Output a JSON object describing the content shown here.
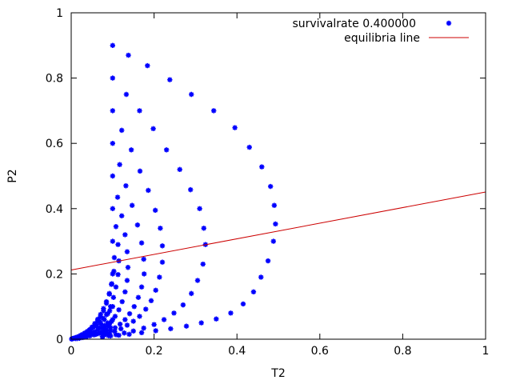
{
  "chart_data": {
    "type": "scatter",
    "title": "",
    "xlabel": "T2",
    "ylabel": "P2",
    "xlim": [
      0,
      1
    ],
    "ylim": [
      0,
      1
    ],
    "xticks": [
      "0",
      "0.2",
      "0.4",
      "0.6",
      "0.8",
      "1"
    ],
    "yticks": [
      "0",
      "0.2",
      "0.4",
      "0.6",
      "0.8",
      "1"
    ],
    "grid": false,
    "legend_position": "top-right",
    "series": [
      {
        "name": "survivalrate 0.400000",
        "kind": "points",
        "color": "#0000ff",
        "marker": "star",
        "points": [
          [
            0.1,
            0.9
          ],
          [
            0.138,
            0.87
          ],
          [
            0.184,
            0.838
          ],
          [
            0.238,
            0.795
          ],
          [
            0.29,
            0.75
          ],
          [
            0.344,
            0.7
          ],
          [
            0.395,
            0.648
          ],
          [
            0.43,
            0.588
          ],
          [
            0.46,
            0.528
          ],
          [
            0.481,
            0.468
          ],
          [
            0.49,
            0.41
          ],
          [
            0.493,
            0.353
          ],
          [
            0.488,
            0.3
          ],
          [
            0.475,
            0.24
          ],
          [
            0.458,
            0.19
          ],
          [
            0.44,
            0.145
          ],
          [
            0.415,
            0.108
          ],
          [
            0.385,
            0.08
          ],
          [
            0.35,
            0.062
          ],
          [
            0.314,
            0.05
          ],
          [
            0.278,
            0.04
          ],
          [
            0.24,
            0.032
          ],
          [
            0.204,
            0.026
          ],
          [
            0.17,
            0.02
          ],
          [
            0.14,
            0.015
          ],
          [
            0.115,
            0.012
          ],
          [
            0.095,
            0.01
          ],
          [
            0.076,
            0.008
          ],
          [
            0.1,
            0.8
          ],
          [
            0.133,
            0.75
          ],
          [
            0.165,
            0.7
          ],
          [
            0.198,
            0.645
          ],
          [
            0.23,
            0.58
          ],
          [
            0.262,
            0.52
          ],
          [
            0.288,
            0.458
          ],
          [
            0.31,
            0.4
          ],
          [
            0.32,
            0.34
          ],
          [
            0.324,
            0.29
          ],
          [
            0.318,
            0.23
          ],
          [
            0.305,
            0.18
          ],
          [
            0.29,
            0.14
          ],
          [
            0.27,
            0.105
          ],
          [
            0.248,
            0.08
          ],
          [
            0.224,
            0.06
          ],
          [
            0.2,
            0.045
          ],
          [
            0.175,
            0.034
          ],
          [
            0.15,
            0.025
          ],
          [
            0.128,
            0.019
          ],
          [
            0.108,
            0.014
          ],
          [
            0.09,
            0.011
          ],
          [
            0.075,
            0.008
          ],
          [
            0.1,
            0.7
          ],
          [
            0.122,
            0.64
          ],
          [
            0.145,
            0.58
          ],
          [
            0.166,
            0.515
          ],
          [
            0.186,
            0.456
          ],
          [
            0.203,
            0.395
          ],
          [
            0.215,
            0.34
          ],
          [
            0.22,
            0.286
          ],
          [
            0.22,
            0.236
          ],
          [
            0.213,
            0.19
          ],
          [
            0.204,
            0.15
          ],
          [
            0.193,
            0.118
          ],
          [
            0.18,
            0.092
          ],
          [
            0.165,
            0.07
          ],
          [
            0.15,
            0.055
          ],
          [
            0.135,
            0.043
          ],
          [
            0.12,
            0.032
          ],
          [
            0.105,
            0.024
          ],
          [
            0.092,
            0.018
          ],
          [
            0.08,
            0.013
          ],
          [
            0.1,
            0.6
          ],
          [
            0.117,
            0.535
          ],
          [
            0.132,
            0.47
          ],
          [
            0.147,
            0.41
          ],
          [
            0.16,
            0.35
          ],
          [
            0.17,
            0.295
          ],
          [
            0.175,
            0.245
          ],
          [
            0.176,
            0.2
          ],
          [
            0.17,
            0.16
          ],
          [
            0.162,
            0.128
          ],
          [
            0.152,
            0.1
          ],
          [
            0.141,
            0.078
          ],
          [
            0.13,
            0.06
          ],
          [
            0.118,
            0.046
          ],
          [
            0.106,
            0.035
          ],
          [
            0.095,
            0.026
          ],
          [
            0.084,
            0.019
          ],
          [
            0.1,
            0.5
          ],
          [
            0.112,
            0.435
          ],
          [
            0.122,
            0.378
          ],
          [
            0.13,
            0.32
          ],
          [
            0.135,
            0.268
          ],
          [
            0.137,
            0.22
          ],
          [
            0.135,
            0.18
          ],
          [
            0.13,
            0.145
          ],
          [
            0.123,
            0.115
          ],
          [
            0.115,
            0.09
          ],
          [
            0.106,
            0.07
          ],
          [
            0.097,
            0.054
          ],
          [
            0.088,
            0.041
          ],
          [
            0.079,
            0.031
          ],
          [
            0.1,
            0.4
          ],
          [
            0.108,
            0.345
          ],
          [
            0.113,
            0.29
          ],
          [
            0.115,
            0.24
          ],
          [
            0.113,
            0.198
          ],
          [
            0.108,
            0.16
          ],
          [
            0.102,
            0.128
          ],
          [
            0.095,
            0.1
          ],
          [
            0.088,
            0.078
          ],
          [
            0.08,
            0.06
          ],
          [
            0.072,
            0.046
          ],
          [
            0.065,
            0.035
          ],
          [
            0.1,
            0.3
          ],
          [
            0.104,
            0.25
          ],
          [
            0.103,
            0.208
          ],
          [
            0.098,
            0.17
          ],
          [
            0.092,
            0.138
          ],
          [
            0.085,
            0.11
          ],
          [
            0.078,
            0.087
          ],
          [
            0.07,
            0.068
          ],
          [
            0.063,
            0.053
          ],
          [
            0.056,
            0.04
          ],
          [
            0.1,
            0.2
          ],
          [
            0.097,
            0.168
          ],
          [
            0.092,
            0.14
          ],
          [
            0.085,
            0.115
          ],
          [
            0.078,
            0.094
          ],
          [
            0.071,
            0.076
          ],
          [
            0.064,
            0.061
          ],
          [
            0.057,
            0.048
          ],
          [
            0.05,
            0.037
          ],
          [
            0.044,
            0.028
          ],
          [
            0.1,
            0.1
          ],
          [
            0.093,
            0.087
          ],
          [
            0.085,
            0.075
          ],
          [
            0.077,
            0.064
          ],
          [
            0.069,
            0.054
          ],
          [
            0.061,
            0.045
          ],
          [
            0.053,
            0.037
          ],
          [
            0.046,
            0.03
          ],
          [
            0.039,
            0.024
          ],
          [
            0.033,
            0.019
          ],
          [
            0.028,
            0.015
          ],
          [
            0.023,
            0.012
          ],
          [
            0.019,
            0.009
          ],
          [
            0.015,
            0.007
          ],
          [
            0.012,
            0.005
          ],
          [
            0.009,
            0.004
          ],
          [
            0.006,
            0.003
          ],
          [
            0.004,
            0.002
          ],
          [
            0.002,
            0.001
          ],
          [
            0.001,
            0.0005
          ],
          [
            0.088,
            0.05
          ],
          [
            0.08,
            0.042
          ],
          [
            0.072,
            0.035
          ],
          [
            0.064,
            0.029
          ],
          [
            0.056,
            0.023
          ],
          [
            0.048,
            0.018
          ],
          [
            0.04,
            0.014
          ],
          [
            0.033,
            0.011
          ],
          [
            0.026,
            0.008
          ],
          [
            0.02,
            0.006
          ],
          [
            0.095,
            0.035
          ],
          [
            0.085,
            0.028
          ],
          [
            0.075,
            0.022
          ],
          [
            0.065,
            0.017
          ],
          [
            0.055,
            0.013
          ],
          [
            0.045,
            0.01
          ],
          [
            0.036,
            0.007
          ],
          [
            0.028,
            0.005
          ],
          [
            0.02,
            0.003
          ],
          [
            0.014,
            0.002
          ],
          [
            0.1,
            0.06
          ],
          [
            0.092,
            0.045
          ],
          [
            0.082,
            0.03
          ],
          [
            0.07,
            0.02
          ],
          [
            0.06,
            0.015
          ],
          [
            0.05,
            0.02
          ],
          [
            0.04,
            0.012
          ],
          [
            0.03,
            0.01
          ],
          [
            0.02,
            0.005
          ],
          [
            0.01,
            0.002
          ]
        ]
      },
      {
        "name": "equilibria line",
        "kind": "line",
        "color": "#cc0000",
        "points": [
          [
            0,
            0.212
          ],
          [
            1,
            0.451
          ]
        ]
      }
    ]
  }
}
